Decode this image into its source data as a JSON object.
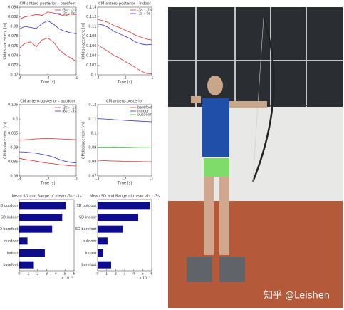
{
  "chart_data": [
    {
      "type": "line",
      "title": "CM antero-posterior - barefoot",
      "xlabel": "Time [s]",
      "ylabel": "CMdisplacement [m]",
      "x": [
        -3,
        -2.8,
        -2.6,
        -2.4,
        -2.2,
        -2,
        -1.8,
        -1.6,
        -1.4,
        -1.2,
        -1
      ],
      "series": [
        {
          "name": "-3s : -1s",
          "color": "#e03030",
          "values": [
            0.0815,
            0.082,
            0.0822,
            0.0825,
            0.0823,
            0.083,
            0.0828,
            0.0825,
            0.0822,
            0.0826,
            0.0825
          ]
        },
        {
          "name": "-2s : 0s",
          "color": "#3030d0",
          "values": [
            0.0795,
            0.08,
            0.0798,
            0.0796,
            0.0806,
            0.0812,
            0.0805,
            0.0795,
            0.079,
            0.0787,
            0.0785
          ]
        },
        {
          "color": "#e03030",
          "values": [
            0.0755,
            0.0765,
            0.0768,
            0.0758,
            0.0772,
            0.0776,
            0.0768,
            0.0752,
            0.0742,
            0.0735,
            0.0728
          ]
        }
      ],
      "xlim": [
        -3,
        -1
      ],
      "xticks": [
        -3,
        -2,
        -1
      ],
      "ylim": [
        0.07,
        0.084
      ],
      "yticks": [
        0.07,
        0.072,
        0.074,
        0.076,
        0.078,
        0.08,
        0.082,
        0.084
      ]
    },
    {
      "type": "line",
      "title": "CM antero-posterior - indoor",
      "xlabel": "Time [s]",
      "ylabel": "CMdisplacement [m]",
      "x": [
        -3,
        -2.8,
        -2.6,
        -2.4,
        -2.2,
        -2,
        -1.8,
        -1.6,
        -1.4,
        -1.2,
        -1
      ],
      "series": [
        {
          "name": "-3s : -1s",
          "color": "#e03030",
          "values": [
            0.1115,
            0.1112,
            0.1108,
            0.1102,
            0.1098,
            0.1093,
            0.1088,
            0.1082,
            0.1078,
            0.1074,
            0.1072
          ]
        },
        {
          "name": "-2s : 0s",
          "color": "#3030d0",
          "values": [
            0.1105,
            0.1103,
            0.1098,
            0.109,
            0.1085,
            0.108,
            0.1075,
            0.1068,
            0.1064,
            0.1062,
            0.1063
          ]
        },
        {
          "color": "#e03030",
          "values": [
            0.1062,
            0.1055,
            0.1048,
            0.104,
            0.1035,
            0.1028,
            0.1022,
            0.1015,
            0.1008,
            0.1003,
            0.1002
          ]
        }
      ],
      "xlim": [
        -3,
        -1
      ],
      "xticks": [
        -3,
        -2,
        -1
      ],
      "ylim": [
        0.1,
        0.114
      ],
      "yticks": [
        0.1,
        0.102,
        0.104,
        0.106,
        0.108,
        0.11,
        0.112,
        0.114
      ]
    },
    {
      "type": "line",
      "title": "CM antero-posterior - outdoor",
      "xlabel": "Time [s]",
      "ylabel": "CMdisplacement [m]",
      "x": [
        -3,
        -2.8,
        -2.6,
        -2.4,
        -2.2,
        -2,
        -1.8,
        -1.6,
        -1.4,
        -1.2,
        -1
      ],
      "series": [
        {
          "name": "-3s : -1s",
          "color": "#e03030",
          "values": [
            0.0925,
            0.0927,
            0.0928,
            0.093,
            0.0931,
            0.0932,
            0.0931,
            0.093,
            0.0929,
            0.0928,
            0.0927
          ]
        },
        {
          "name": "-6s : -3s",
          "color": "#3030d0",
          "values": [
            0.0885,
            0.0884,
            0.0882,
            0.088,
            0.0876,
            0.0872,
            0.0866,
            0.0858,
            0.0852,
            0.0848,
            0.0846
          ]
        },
        {
          "color": "#e03030",
          "values": [
            0.0862,
            0.0858,
            0.0855,
            0.0852,
            0.0848,
            0.0845,
            0.0843,
            0.084,
            0.0838,
            0.0836,
            0.0835
          ]
        }
      ],
      "xlim": [
        -3,
        -1
      ],
      "xticks": [
        -3,
        -2,
        -1
      ],
      "ylim": [
        0.08,
        0.105
      ],
      "yticks": [
        0.08,
        0.085,
        0.09,
        0.095,
        0.1,
        0.105
      ]
    },
    {
      "type": "line",
      "title": "CM antero-posterior",
      "xlabel": "Time [s]",
      "ylabel": "CMdisplacement [m]",
      "x": [
        -3,
        -2.8,
        -2.6,
        -2.4,
        -2.2,
        -2,
        -1.8,
        -1.6,
        -1.4,
        -1.2,
        -1
      ],
      "series": [
        {
          "name": "barefoot",
          "color": "#e03030",
          "values": [
            0.081,
            0.0808,
            0.0806,
            0.0805,
            0.0804,
            0.0803,
            0.0802,
            0.0801,
            0.0801,
            0.08,
            0.08
          ]
        },
        {
          "name": "indoor",
          "color": "#3030d0",
          "values": [
            0.1102,
            0.11,
            0.1098,
            0.1095,
            0.1093,
            0.109,
            0.1088,
            0.1086,
            0.1084,
            0.1082,
            0.108
          ]
        },
        {
          "name": "outdoor",
          "color": "#30c030",
          "values": [
            0.0902,
            0.0903,
            0.0903,
            0.0904,
            0.0903,
            0.0902,
            0.0901,
            0.09,
            0.0899,
            0.0899,
            0.0898
          ]
        }
      ],
      "xlim": [
        -3,
        -1
      ],
      "xticks": [
        -3,
        -2,
        -1
      ],
      "ylim": [
        0.07,
        0.12
      ],
      "yticks": [
        0.07,
        0.08,
        0.09,
        0.1,
        0.11,
        0.12
      ]
    },
    {
      "type": "barh",
      "title": "Mean SD and Range of mean -3s : -1s",
      "x_unit": "x 10⁻³",
      "categories": [
        "SD outdoor",
        "SD indoor",
        "SD barefoot",
        "outdoor",
        "indoor",
        "barefoot"
      ],
      "values": [
        5.1,
        4.7,
        3.6,
        0.9,
        2.8,
        1.6
      ],
      "color": "#0c0c8c",
      "xlim": [
        0,
        6
      ],
      "xticks": [
        0,
        1,
        2,
        3,
        4,
        5,
        6
      ]
    },
    {
      "type": "barh",
      "title": "Mean SD and Range of mean -6s : -3s",
      "x_unit": "x 10⁻³",
      "categories": [
        "SD outdoor",
        "SD indoor",
        "SD barefoot",
        "outdoor",
        "indoor",
        "barefoot"
      ],
      "values": [
        5.8,
        4.5,
        2.8,
        1.1,
        0.6,
        1.5
      ],
      "color": "#0c0c8c",
      "xlim": [
        0,
        6
      ],
      "xticks": [
        0,
        1,
        2,
        3,
        4,
        5,
        6
      ]
    }
  ],
  "watermark": "知乎 @Leishen"
}
